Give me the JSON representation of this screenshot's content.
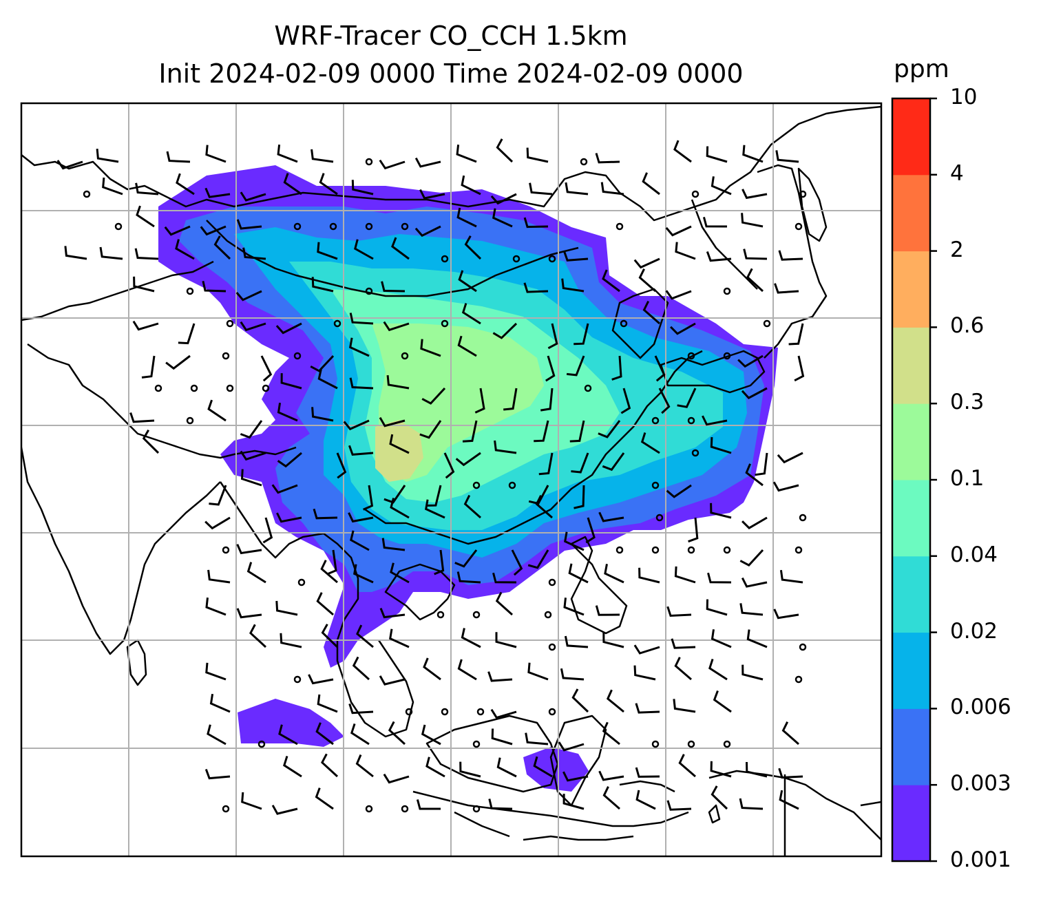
{
  "title": {
    "line1": "WRF-Tracer CO_CCH 1.5km",
    "line2": "Init 2024-02-09 0000 Time 2024-02-09 0000"
  },
  "colorbar": {
    "unit": "ppm",
    "ticks": [
      "0.001",
      "0.003",
      "0.006",
      "0.02",
      "0.04",
      "0.1",
      "0.3",
      "0.6",
      "2",
      "4",
      "10"
    ],
    "colors": [
      "#6a2bff",
      "#3a72f5",
      "#06b3ea",
      "#30dcd6",
      "#6cfac0",
      "#9cfa9a",
      "#d1e08a",
      "#ffae5e",
      "#ff733c",
      "#ff2a17"
    ]
  },
  "map": {
    "gridlines": true,
    "land_outline_color": "#000000",
    "barb_color": "#000000",
    "grid_color": "#b0b0b0"
  }
}
